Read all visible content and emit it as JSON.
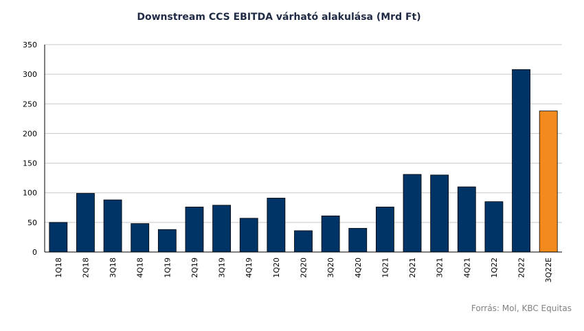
{
  "chart_data": {
    "type": "bar",
    "title": "Downstream CCS EBITDA várható alakulása (Mrd Ft)",
    "categories": [
      "1Q18",
      "2Q18",
      "3Q18",
      "4Q18",
      "1Q19",
      "2Q19",
      "3Q19",
      "4Q19",
      "1Q20",
      "2Q20",
      "3Q20",
      "4Q20",
      "1Q21",
      "2Q21",
      "3Q21",
      "4Q21",
      "1Q22",
      "2Q22",
      "3Q22E"
    ],
    "values": [
      50,
      99,
      88,
      48,
      38,
      76,
      79,
      57,
      91,
      36,
      61,
      40,
      76,
      131,
      130,
      110,
      85,
      308,
      238
    ],
    "xlabel": "",
    "ylabel": "",
    "ylim": [
      0,
      350
    ],
    "yticks": [
      0,
      50,
      100,
      150,
      200,
      250,
      300,
      350
    ],
    "grid": true,
    "legend": "none",
    "colors": {
      "actual": "#003366",
      "estimate": "#f28a1e",
      "grid": "#c8c8c8",
      "axis": "#000000"
    },
    "estimate_categories": [
      "3Q22E"
    ]
  },
  "source_note": "Forrás: Mol, KBC Equitas"
}
